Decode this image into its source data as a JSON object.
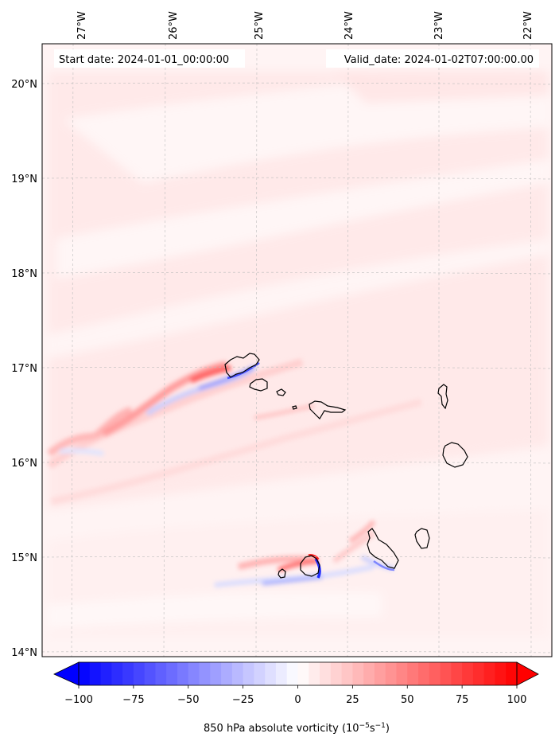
{
  "header": {
    "start_date": "Start date: 2024-01-01_00:00:00",
    "valid_date": "Valid_date: 2024-01-02T07:00:00.00"
  },
  "chart_data": {
    "type": "heatmap",
    "title": "",
    "lon_ticks": [
      {
        "value": -27,
        "label": "27°W"
      },
      {
        "value": -26,
        "label": "26°W"
      },
      {
        "value": -25,
        "label": "25°W"
      },
      {
        "value": -24,
        "label": "24°W"
      },
      {
        "value": -23,
        "label": "23°W"
      },
      {
        "value": -22,
        "label": "22°W"
      }
    ],
    "lat_ticks": [
      {
        "value": 20,
        "label": "20°N"
      },
      {
        "value": 19,
        "label": "19°N"
      },
      {
        "value": 18,
        "label": "18°N"
      },
      {
        "value": 17,
        "label": "17°N"
      },
      {
        "value": 16,
        "label": "16°N"
      },
      {
        "value": 15,
        "label": "15°N"
      },
      {
        "value": 14,
        "label": "14°N"
      }
    ],
    "grid": true,
    "colorbar": {
      "min": -100,
      "max": 100,
      "ticks": [
        {
          "value": -100,
          "label": "−100"
        },
        {
          "value": -75,
          "label": "−75"
        },
        {
          "value": -50,
          "label": "−50"
        },
        {
          "value": -25,
          "label": "−25"
        },
        {
          "value": 0,
          "label": "0"
        },
        {
          "value": 25,
          "label": "25"
        },
        {
          "value": 50,
          "label": "50"
        },
        {
          "value": 75,
          "label": "75"
        },
        {
          "value": 100,
          "label": "100"
        }
      ],
      "label_prefix": "850 hPa absolute vorticity (10",
      "label_exp1": "−5",
      "label_mid": "s",
      "label_exp2": "−1",
      "label_suffix": ")",
      "extend": "both",
      "colormap": "bwr"
    }
  }
}
